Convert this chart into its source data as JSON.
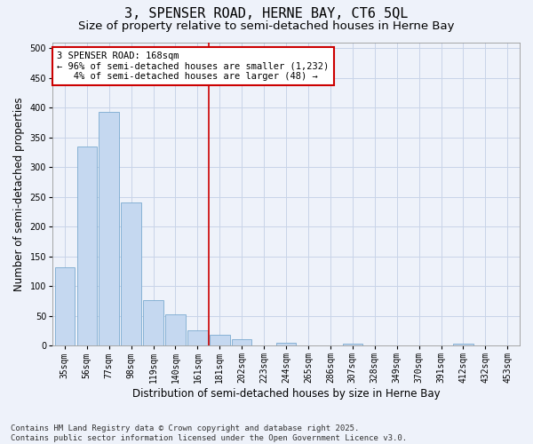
{
  "title": "3, SPENSER ROAD, HERNE BAY, CT6 5QL",
  "subtitle": "Size of property relative to semi-detached houses in Herne Bay",
  "xlabel": "Distribution of semi-detached houses by size in Herne Bay",
  "ylabel": "Number of semi-detached properties",
  "categories": [
    "35sqm",
    "56sqm",
    "77sqm",
    "98sqm",
    "119sqm",
    "140sqm",
    "161sqm",
    "181sqm",
    "202sqm",
    "223sqm",
    "244sqm",
    "265sqm",
    "286sqm",
    "307sqm",
    "328sqm",
    "349sqm",
    "370sqm",
    "391sqm",
    "412sqm",
    "432sqm",
    "453sqm"
  ],
  "values": [
    131,
    335,
    393,
    241,
    77,
    52,
    26,
    19,
    11,
    0,
    5,
    0,
    0,
    4,
    0,
    0,
    0,
    0,
    3,
    0,
    0
  ],
  "bar_color": "#c5d8f0",
  "bar_edge_color": "#7aaad0",
  "grid_color": "#c8d4e8",
  "background_color": "#eef2fa",
  "vline_x": 6.5,
  "vline_color": "#cc0000",
  "annotation_text": "3 SPENSER ROAD: 168sqm\n← 96% of semi-detached houses are smaller (1,232)\n   4% of semi-detached houses are larger (48) →",
  "annotation_box_color": "#ffffff",
  "annotation_box_edge": "#cc0000",
  "footer": "Contains HM Land Registry data © Crown copyright and database right 2025.\nContains public sector information licensed under the Open Government Licence v3.0.",
  "ylim": [
    0,
    510
  ],
  "yticks": [
    0,
    50,
    100,
    150,
    200,
    250,
    300,
    350,
    400,
    450,
    500
  ],
  "title_fontsize": 11,
  "subtitle_fontsize": 9.5,
  "xlabel_fontsize": 8.5,
  "ylabel_fontsize": 8.5,
  "tick_fontsize": 7,
  "footer_fontsize": 6.5,
  "annotation_fontsize": 7.5
}
